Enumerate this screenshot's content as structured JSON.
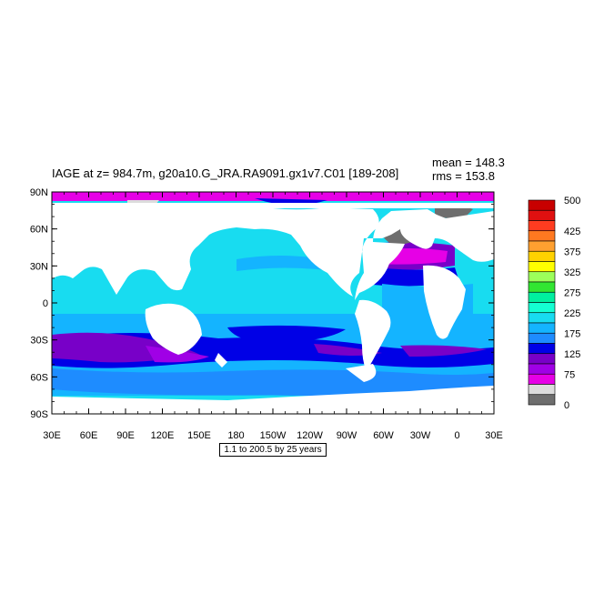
{
  "title": "IAGE at z= 984.7m, g20a10.G_JRA.RA9091.gx1v7.C01 [189-208]",
  "stats": {
    "mean": "mean = 148.3",
    "rms": "rms = 153.8"
  },
  "lat_labels": [
    "90N",
    "60N",
    "30N",
    "0",
    "30S",
    "60S",
    "90S"
  ],
  "lon_labels": [
    "30E",
    "60E",
    "90E",
    "120E",
    "150E",
    "180",
    "150W",
    "120W",
    "90W",
    "60W",
    "30W",
    "0",
    "30E"
  ],
  "note": "1.1 to 200.5 by 25 years",
  "colorbar": {
    "labels": [
      "500",
      "425",
      "375",
      "325",
      "275",
      "225",
      "175",
      "125",
      "75",
      "0"
    ],
    "colors": [
      "#c80000",
      "#e01010",
      "#ff3c20",
      "#ff7820",
      "#ffa030",
      "#ffd200",
      "#ffff00",
      "#9cff5a",
      "#32e632",
      "#00f0a0",
      "#14ffd2",
      "#18dcf0",
      "#14b4ff",
      "#1e8cff",
      "#0000e6",
      "#7800c8",
      "#a000e6",
      "#e600e6",
      "#dcdcdc",
      "#6e6e6e"
    ]
  },
  "palette": {
    "land": "#ffffff",
    "ocean_base": "#18dcf0"
  }
}
